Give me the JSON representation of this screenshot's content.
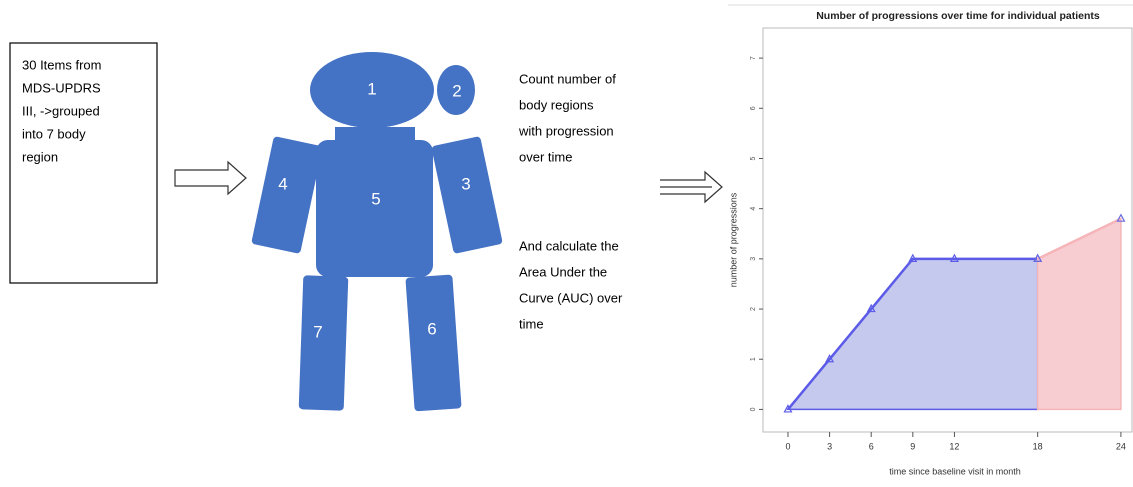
{
  "box": {
    "lines": [
      "30 Items from",
      "MDS-UPDRS",
      "III, ->grouped",
      "into 7 body",
      "region"
    ]
  },
  "body_regions": [
    "1",
    "2",
    "3",
    "4",
    "5",
    "6",
    "7"
  ],
  "notes": [
    {
      "lines": [
        "Count number of",
        "body regions",
        "with progression",
        "over time"
      ]
    },
    {
      "lines": [
        "And calculate the",
        "Area Under the",
        "Curve (AUC) over",
        "time"
      ]
    }
  ],
  "chart_data": {
    "type": "area",
    "title": "Number of progressions over time for individual patients",
    "x_label": "time since baseline visit in month",
    "y_label": "number of progressions",
    "x": [
      0,
      3,
      6,
      9,
      12,
      18,
      24
    ],
    "series": [
      {
        "color": "#5b5be8",
        "fill": "#c6c9ee",
        "values": [
          0,
          1,
          2,
          3,
          3,
          3,
          null
        ]
      },
      {
        "color": "#f5b5b8",
        "fill": "#f8cdd2",
        "values": [
          null,
          null,
          null,
          null,
          null,
          3,
          3.8
        ]
      }
    ],
    "xlim": [
      -1.8,
      24.8
    ],
    "xticks": [
      0,
      3,
      6,
      9,
      12,
      18,
      24
    ],
    "ylim": [
      -0.45,
      7.6
    ],
    "yticks": [
      0,
      1,
      2,
      3,
      4,
      5,
      6,
      7
    ]
  }
}
